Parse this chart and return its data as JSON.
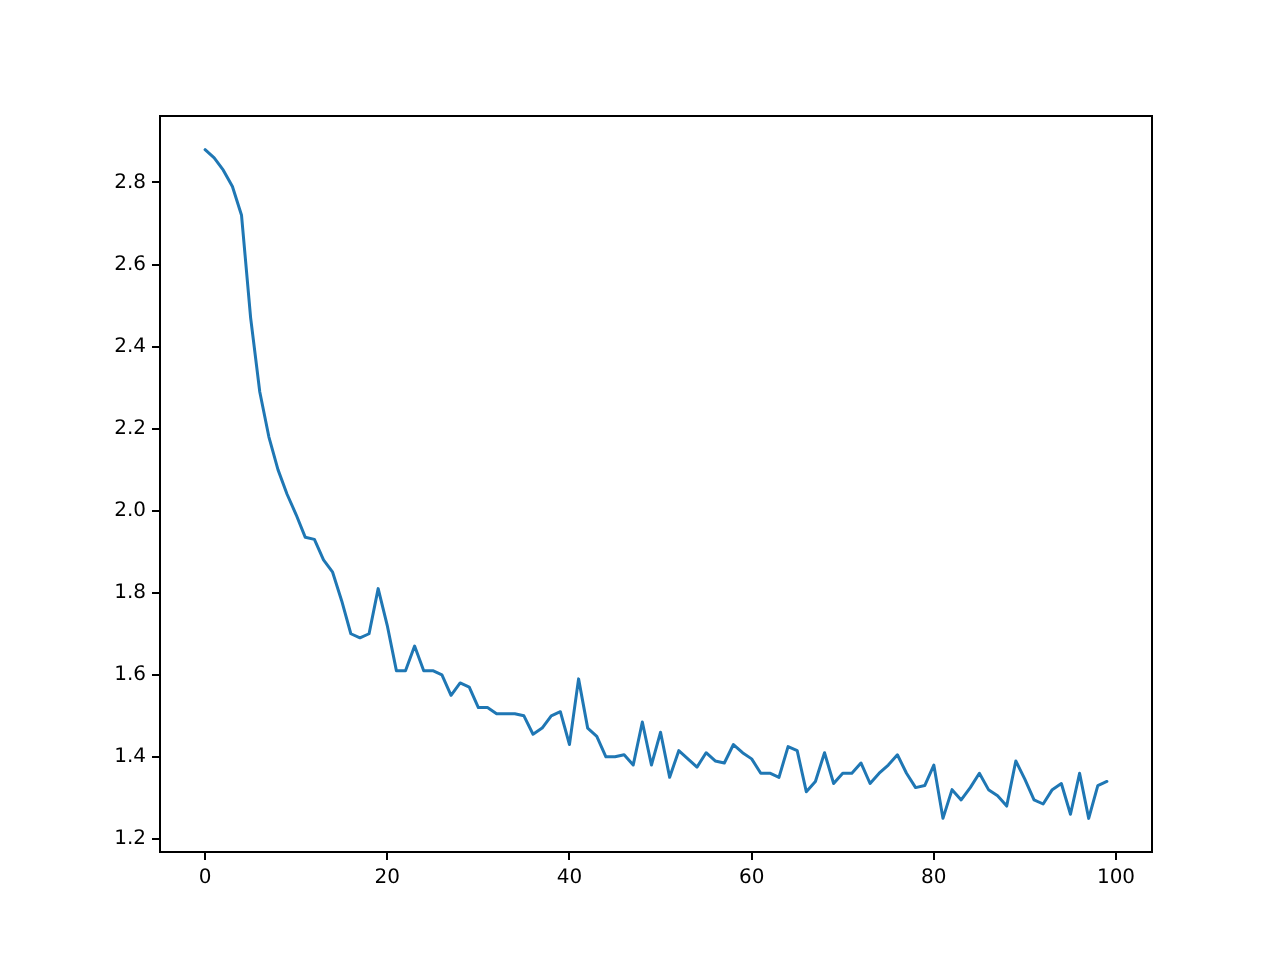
{
  "chart_data": {
    "type": "line",
    "x": [
      0,
      1,
      2,
      3,
      4,
      5,
      6,
      7,
      8,
      9,
      10,
      11,
      12,
      13,
      14,
      15,
      16,
      17,
      18,
      19,
      20,
      21,
      22,
      23,
      24,
      25,
      26,
      27,
      28,
      29,
      30,
      31,
      32,
      33,
      34,
      35,
      36,
      37,
      38,
      39,
      40,
      41,
      42,
      43,
      44,
      45,
      46,
      47,
      48,
      49,
      50,
      51,
      52,
      53,
      54,
      55,
      56,
      57,
      58,
      59,
      60,
      61,
      62,
      63,
      64,
      65,
      66,
      67,
      68,
      69,
      70,
      71,
      72,
      73,
      74,
      75,
      76,
      77,
      78,
      79,
      80,
      81,
      82,
      83,
      84,
      85,
      86,
      87,
      88,
      89,
      90,
      91,
      92,
      93,
      94,
      95,
      96,
      97,
      98,
      99
    ],
    "series": [
      {
        "color": "#1f77b4",
        "values": [
          2.88,
          2.86,
          2.83,
          2.79,
          2.72,
          2.47,
          2.29,
          2.18,
          2.1,
          2.04,
          1.99,
          1.935,
          1.93,
          1.88,
          1.85,
          1.78,
          1.7,
          1.69,
          1.7,
          1.81,
          1.72,
          1.61,
          1.61,
          1.67,
          1.61,
          1.61,
          1.6,
          1.55,
          1.58,
          1.57,
          1.52,
          1.52,
          1.505,
          1.505,
          1.505,
          1.5,
          1.455,
          1.47,
          1.5,
          1.51,
          1.43,
          1.59,
          1.47,
          1.45,
          1.4,
          1.4,
          1.405,
          1.38,
          1.485,
          1.38,
          1.46,
          1.35,
          1.415,
          1.395,
          1.375,
          1.41,
          1.39,
          1.385,
          1.43,
          1.41,
          1.395,
          1.36,
          1.36,
          1.35,
          1.425,
          1.415,
          1.315,
          1.34,
          1.41,
          1.335,
          1.36,
          1.36,
          1.385,
          1.335,
          1.36,
          1.38,
          1.405,
          1.36,
          1.325,
          1.33,
          1.38,
          1.25,
          1.32,
          1.295,
          1.325,
          1.36,
          1.32,
          1.305,
          1.28,
          1.39,
          1.345,
          1.295,
          1.285,
          1.32,
          1.335,
          1.26,
          1.36,
          1.25,
          1.33,
          1.34
        ]
      }
    ],
    "xlim": [
      -4.95,
      103.95
    ],
    "xticks": [
      0,
      20,
      40,
      60,
      80,
      100
    ],
    "ylim": [
      1.168,
      2.962
    ],
    "yticks": [
      {
        "value": 1.2,
        "label": "1.2"
      },
      {
        "value": 1.4,
        "label": "1.4"
      },
      {
        "value": 1.6,
        "label": "1.6"
      },
      {
        "value": 1.8,
        "label": "1.8"
      },
      {
        "value": 2.0,
        "label": "2.0"
      },
      {
        "value": 2.2,
        "label": "2.2"
      },
      {
        "value": 2.4,
        "label": "2.4"
      },
      {
        "value": 2.6,
        "label": "2.6"
      },
      {
        "value": 2.8,
        "label": "2.8"
      }
    ],
    "grid": false,
    "legend": false,
    "marker": "none",
    "line_style": "solid"
  }
}
